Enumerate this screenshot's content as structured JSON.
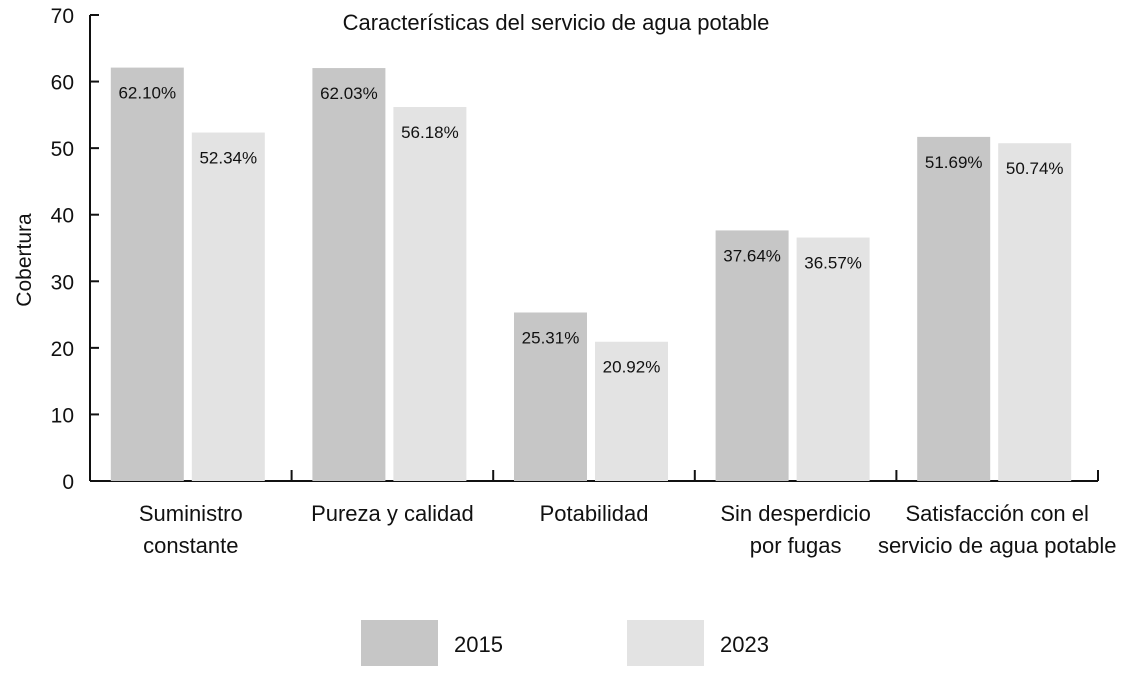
{
  "chart_data": {
    "type": "bar",
    "title": "Características del servicio de agua potable",
    "xlabel": "",
    "ylabel": "Cobertura",
    "ylim": [
      0,
      70
    ],
    "yticks": [
      0,
      10,
      20,
      30,
      40,
      50,
      60,
      70
    ],
    "grid": false,
    "legend_position": "bottom",
    "categories": [
      [
        "Suministro",
        "constante"
      ],
      [
        "Pureza y calidad"
      ],
      [
        "Potabilidad"
      ],
      [
        "Sin desperdicio",
        "por fugas"
      ],
      [
        "Satisfacción con el",
        "servicio de agua potable"
      ]
    ],
    "series": [
      {
        "name": "2015",
        "color": "#c6c6c6",
        "values": [
          62.1,
          62.03,
          25.31,
          37.64,
          51.69
        ],
        "labels": [
          "62.10%",
          "62.03%",
          "25.31%",
          "37.64%",
          "51.69%"
        ]
      },
      {
        "name": "2023",
        "color": "#e3e3e3",
        "values": [
          52.34,
          56.18,
          20.92,
          36.57,
          50.74
        ],
        "labels": [
          "52.34%",
          "56.18%",
          "20.92%",
          "36.57%",
          "50.74%"
        ]
      }
    ]
  }
}
